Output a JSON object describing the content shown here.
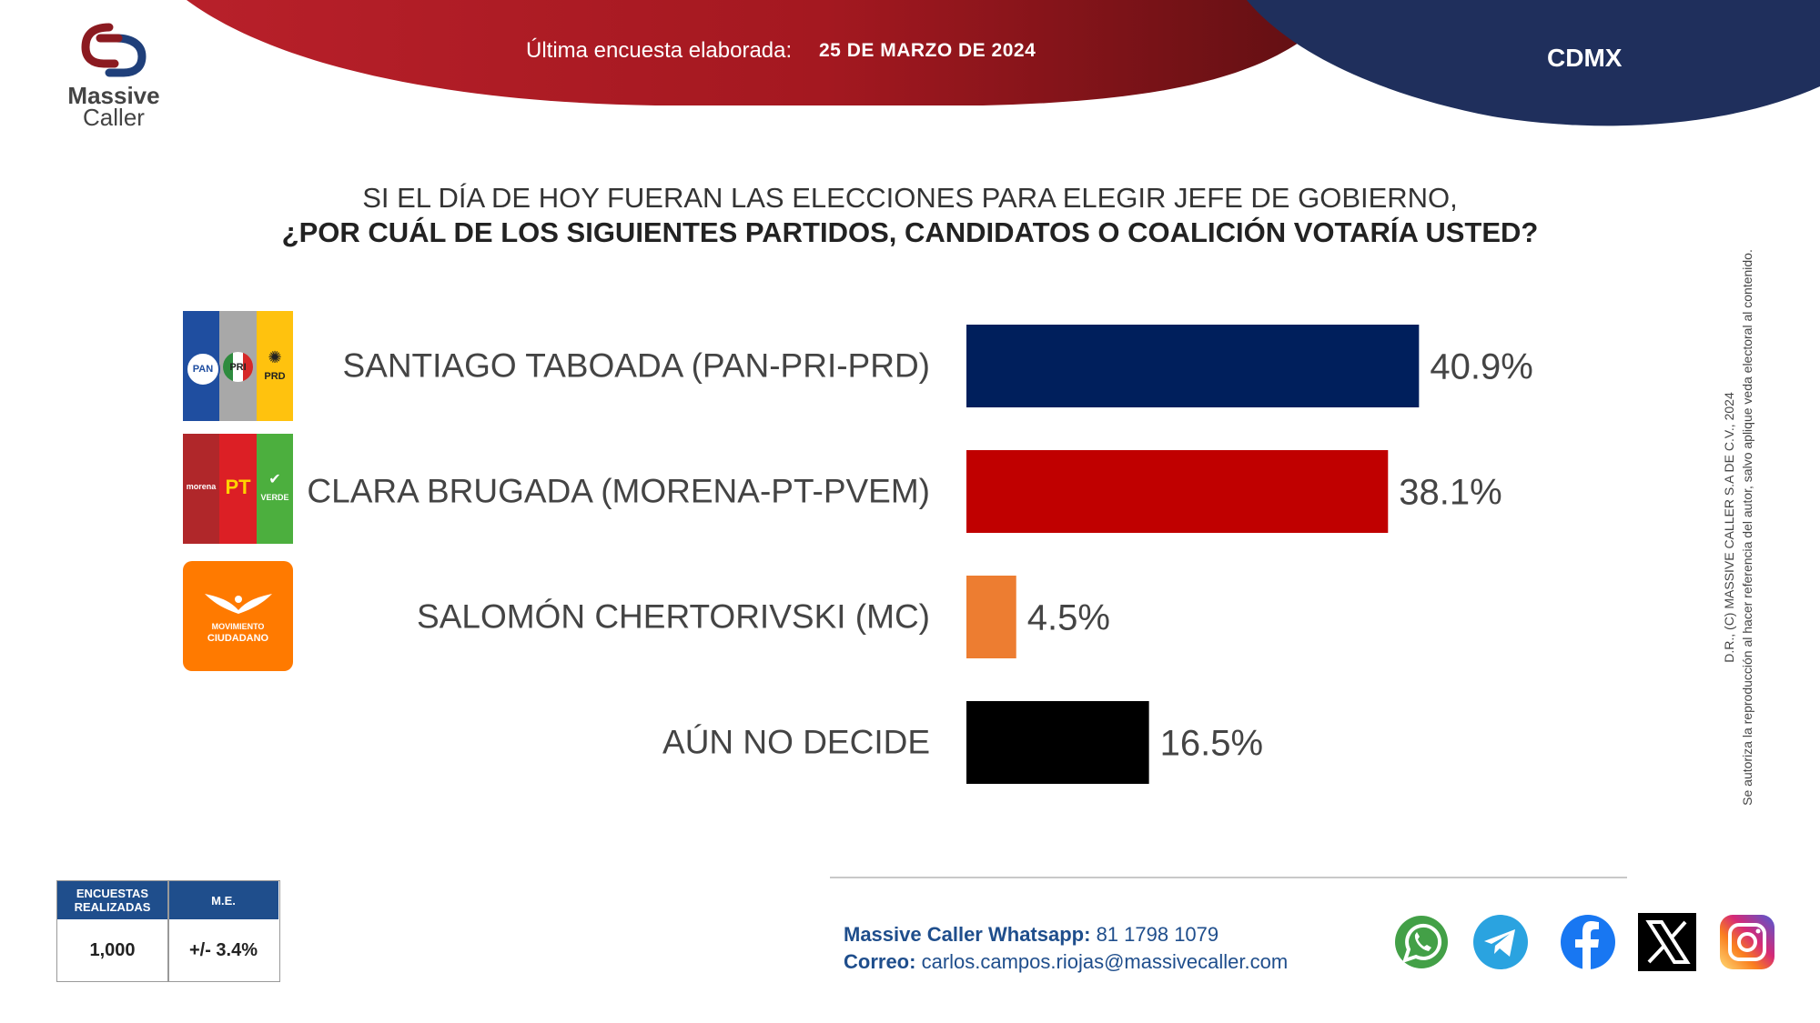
{
  "header": {
    "label": "Última encuesta elaborada:",
    "date": "25 DE MARZO DE 2024",
    "region": "CDMX",
    "colors": {
      "red": "#b01a22",
      "navy": "#1f2f5c"
    }
  },
  "logo": {
    "line1": "Massive",
    "line2": "Caller"
  },
  "question": {
    "line1": "SI EL DÍA DE HOY FUERAN LAS ELECCIONES PARA ELEGIR JEFE DE GOBIERNO,",
    "line2": "¿POR CUÁL DE LOS SIGUIENTES PARTIDOS, CANDIDATOS O COALICIÓN VOTARÍA USTED?"
  },
  "party_logos": {
    "coalition1": [
      "PAN",
      "PRI",
      "PRD"
    ],
    "coalition2": [
      "morena",
      "PT",
      "VERDE"
    ],
    "mc": [
      "MOVIMIENTO",
      "CIUDADANO"
    ]
  },
  "chart_data": {
    "type": "bar",
    "orientation": "horizontal",
    "categories": [
      "SANTIAGO TABOADA (PAN-PRI-PRD)",
      "CLARA BRUGADA (MORENA-PT-PVEM)",
      "SALOMÓN CHERTORIVSKI (MC)",
      "AÚN NO DECIDE"
    ],
    "values": [
      40.9,
      38.1,
      4.5,
      16.5
    ],
    "value_labels": [
      "40.9%",
      "38.1%",
      "4.5%",
      "16.5%"
    ],
    "colors": [
      "#001f5c",
      "#c00000",
      "#ed7d31",
      "#000000"
    ],
    "xlim": [
      0,
      100
    ],
    "grid": false
  },
  "copyright": {
    "line1": "D.R., (C) MASSIVE CALLER S.A DE C.V., 2024",
    "line2": "Se autoriza la reproducción al hacer referencia del autor, salvo aplique veda electoral al contenido."
  },
  "stats_table": {
    "headers": [
      "ENCUESTAS REALIZADAS",
      "M.E."
    ],
    "values": [
      "1,000",
      "+/- 3.4%"
    ]
  },
  "contact": {
    "whatsapp_label": "Massive Caller Whatsapp:",
    "whatsapp_number": "81 1798 1079",
    "email_label": "Correo:",
    "email": "carlos.campos.riojas@massivecaller.com"
  },
  "social_icons": [
    "whatsapp-icon",
    "telegram-icon",
    "facebook-icon",
    "x-icon",
    "instagram-icon"
  ]
}
